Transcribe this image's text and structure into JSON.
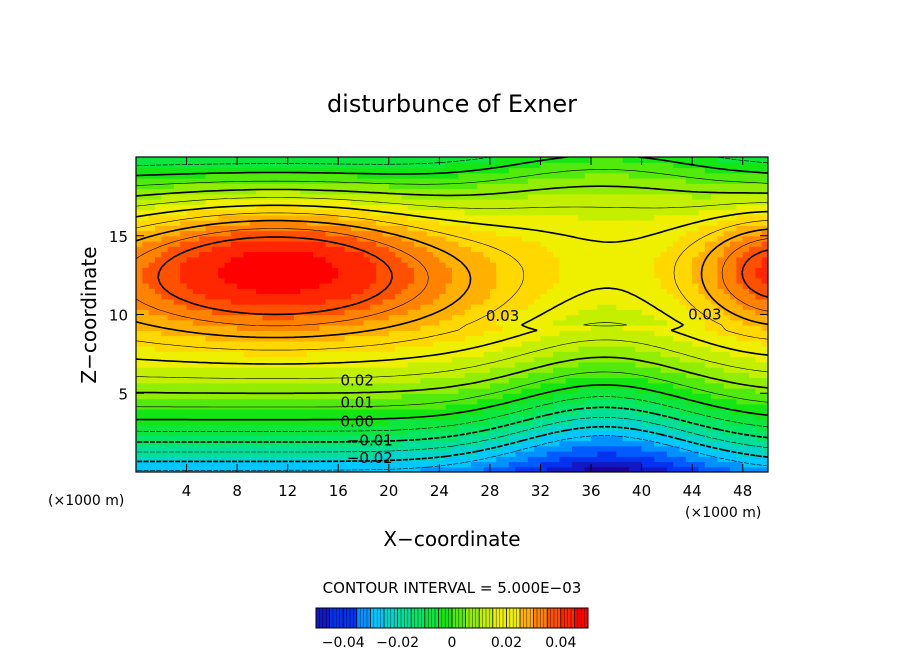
{
  "chart_data": {
    "type": "heatmap",
    "title": "disturbunce of Exner",
    "xlabel": "X−coordinate",
    "ylabel": "Z−coordinate",
    "x_unit_left": "(×1000 m)",
    "x_unit_right": "(×1000 m)",
    "xlim": [
      0,
      50
    ],
    "ylim": [
      0,
      20
    ],
    "x_ticks": [
      4,
      8,
      12,
      16,
      20,
      24,
      28,
      32,
      36,
      40,
      44,
      48
    ],
    "y_ticks": [
      5,
      10,
      15
    ],
    "contour_interval_text": "CONTOUR INTERVAL = 5.000E−03",
    "contour_interval": 0.005,
    "contour_labels": [
      {
        "text": "0.03",
        "x": 29,
        "z": 9.9
      },
      {
        "text": "0.03",
        "x": 45,
        "z": 10.0
      },
      {
        "text": "0.02",
        "x": 17.5,
        "z": 5.8
      },
      {
        "text": "0.01",
        "x": 17.5,
        "z": 4.4
      },
      {
        "text": "0.00",
        "x": 17.5,
        "z": 3.2
      },
      {
        "text": "−0.01",
        "x": 18.5,
        "z": 2.0
      },
      {
        "text": "−0.02",
        "x": 18.5,
        "z": 0.9
      }
    ],
    "colorbar": {
      "range": [
        -0.05,
        0.05
      ],
      "tick_labels": [
        "−0.04",
        "−0.02",
        "0",
        "0.02",
        "0.04"
      ],
      "tick_values": [
        -0.04,
        -0.02,
        0,
        0.02,
        0.04
      ]
    },
    "colors": {
      "low": "#1a10c8",
      "mid": "#22dd22",
      "high": "#ff1500"
    },
    "grid": false,
    "legend": "colorbar bottom-center"
  }
}
